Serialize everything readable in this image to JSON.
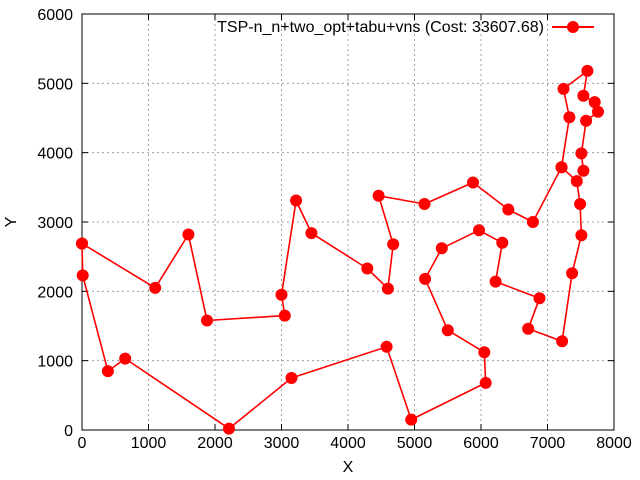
{
  "chart_data": {
    "type": "line",
    "title": "",
    "xlabel": "X",
    "ylabel": "Y",
    "xlim": [
      0,
      8000
    ],
    "ylim": [
      0,
      6000
    ],
    "grid": true,
    "legend_position": "top-right",
    "x_ticks": [
      "0",
      "1000",
      "2000",
      "3000",
      "4000",
      "5000",
      "6000",
      "7000",
      "8000"
    ],
    "y_ticks": [
      "0",
      "1000",
      "2000",
      "3000",
      "4000",
      "5000",
      "6000"
    ],
    "series": [
      {
        "name": "TSP-n_n+two_opt+tabu+vns (Cost: 33607.68)",
        "color": "#ff0000",
        "marker": "circle",
        "points": [
          [
            0,
            2690
          ],
          [
            1100,
            2050
          ],
          [
            1600,
            2820
          ],
          [
            1880,
            1580
          ],
          [
            3050,
            1650
          ],
          [
            3000,
            1950
          ],
          [
            3220,
            3310
          ],
          [
            3450,
            2840
          ],
          [
            4290,
            2330
          ],
          [
            4600,
            2040
          ],
          [
            4680,
            2680
          ],
          [
            4460,
            3380
          ],
          [
            5150,
            3260
          ],
          [
            5880,
            3570
          ],
          [
            6410,
            3180
          ],
          [
            6780,
            3000
          ],
          [
            7210,
            3790
          ],
          [
            7440,
            3590
          ],
          [
            7490,
            3260
          ],
          [
            7510,
            2810
          ],
          [
            7370,
            2260
          ],
          [
            7220,
            1280
          ],
          [
            6710,
            1460
          ],
          [
            6880,
            1900
          ],
          [
            6220,
            2140
          ],
          [
            6320,
            2700
          ],
          [
            5970,
            2880
          ],
          [
            5410,
            2620
          ],
          [
            5160,
            2180
          ],
          [
            5500,
            1440
          ],
          [
            6050,
            1120
          ],
          [
            6070,
            680
          ],
          [
            4950,
            150
          ],
          [
            4580,
            1200
          ],
          [
            3150,
            750
          ],
          [
            2210,
            20
          ],
          [
            650,
            1030
          ],
          [
            390,
            850
          ],
          [
            10,
            2230
          ],
          [
            0,
            2690
          ]
        ],
        "tail": [
          [
            7540,
            3740
          ],
          [
            7510,
            3990
          ],
          [
            7580,
            4460
          ],
          [
            7760,
            4590
          ],
          [
            7710,
            4730
          ],
          [
            7540,
            4820
          ],
          [
            7600,
            5180
          ],
          [
            7240,
            4920
          ],
          [
            7330,
            4510
          ],
          [
            7210,
            3790
          ]
        ]
      }
    ]
  }
}
